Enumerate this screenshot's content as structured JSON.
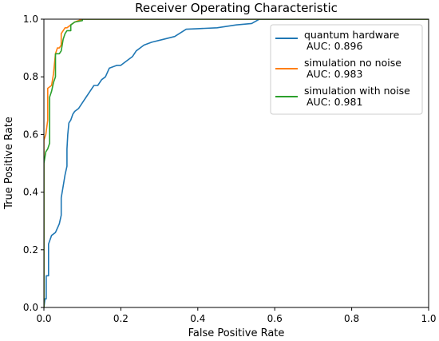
{
  "chart_data": {
    "type": "line",
    "title": "Receiver Operating Characteristic",
    "xlabel": "False Positive Rate",
    "ylabel": "True Positive Rate",
    "xlim": [
      0,
      1
    ],
    "ylim": [
      0,
      1
    ],
    "xticks": [
      "0.0",
      "0.2",
      "0.4",
      "0.6",
      "0.8",
      "1.0"
    ],
    "yticks": [
      "0.0",
      "0.2",
      "0.4",
      "0.6",
      "0.8",
      "1.0"
    ],
    "grid": false,
    "legend_position": "top-right",
    "series": [
      {
        "name": "quantum hardware",
        "auc_label": "AUC: 0.896",
        "color": "#1f77b4",
        "points": [
          [
            0,
            0
          ],
          [
            0.003,
            0.03
          ],
          [
            0.006,
            0.03
          ],
          [
            0.006,
            0.11
          ],
          [
            0.012,
            0.11
          ],
          [
            0.012,
            0.22
          ],
          [
            0.02,
            0.25
          ],
          [
            0.03,
            0.26
          ],
          [
            0.04,
            0.29
          ],
          [
            0.045,
            0.32
          ],
          [
            0.045,
            0.38
          ],
          [
            0.05,
            0.42
          ],
          [
            0.055,
            0.46
          ],
          [
            0.06,
            0.49
          ],
          [
            0.06,
            0.55
          ],
          [
            0.062,
            0.6
          ],
          [
            0.065,
            0.64
          ],
          [
            0.07,
            0.65
          ],
          [
            0.075,
            0.67
          ],
          [
            0.08,
            0.68
          ],
          [
            0.09,
            0.69
          ],
          [
            0.1,
            0.71
          ],
          [
            0.11,
            0.73
          ],
          [
            0.12,
            0.75
          ],
          [
            0.13,
            0.77
          ],
          [
            0.14,
            0.77
          ],
          [
            0.15,
            0.79
          ],
          [
            0.16,
            0.8
          ],
          [
            0.17,
            0.83
          ],
          [
            0.19,
            0.84
          ],
          [
            0.2,
            0.84
          ],
          [
            0.22,
            0.86
          ],
          [
            0.23,
            0.87
          ],
          [
            0.24,
            0.89
          ],
          [
            0.25,
            0.9
          ],
          [
            0.26,
            0.91
          ],
          [
            0.28,
            0.92
          ],
          [
            0.31,
            0.93
          ],
          [
            0.34,
            0.94
          ],
          [
            0.37,
            0.965
          ],
          [
            0.4,
            0.967
          ],
          [
            0.45,
            0.97
          ],
          [
            0.5,
            0.98
          ],
          [
            0.54,
            0.985
          ],
          [
            0.56,
            1.0
          ],
          [
            0.72,
            1.0
          ],
          [
            1.0,
            1.0
          ]
        ]
      },
      {
        "name": "simulation no noise",
        "auc_label": "AUC: 0.983",
        "color": "#ff7f0e",
        "points": [
          [
            0,
            0
          ],
          [
            0,
            0.58
          ],
          [
            0.005,
            0.6
          ],
          [
            0.01,
            0.65
          ],
          [
            0.01,
            0.76
          ],
          [
            0.02,
            0.77
          ],
          [
            0.025,
            0.81
          ],
          [
            0.03,
            0.88
          ],
          [
            0.035,
            0.9
          ],
          [
            0.04,
            0.9
          ],
          [
            0.045,
            0.91
          ],
          [
            0.045,
            0.95
          ],
          [
            0.05,
            0.96
          ],
          [
            0.055,
            0.97
          ],
          [
            0.06,
            0.97
          ],
          [
            0.07,
            0.98
          ],
          [
            0.08,
            0.99
          ],
          [
            0.09,
            0.995
          ],
          [
            0.1,
            1.0
          ],
          [
            0.15,
            1.0
          ],
          [
            1.0,
            1.0
          ]
        ]
      },
      {
        "name": "simulation with noise",
        "auc_label": "AUC: 0.981",
        "color": "#2ca02c",
        "points": [
          [
            0,
            0
          ],
          [
            0,
            0.5
          ],
          [
            0.005,
            0.54
          ],
          [
            0.01,
            0.55
          ],
          [
            0.015,
            0.57
          ],
          [
            0.015,
            0.73
          ],
          [
            0.02,
            0.75
          ],
          [
            0.025,
            0.78
          ],
          [
            0.03,
            0.8
          ],
          [
            0.03,
            0.88
          ],
          [
            0.04,
            0.88
          ],
          [
            0.045,
            0.89
          ],
          [
            0.05,
            0.93
          ],
          [
            0.055,
            0.95
          ],
          [
            0.06,
            0.96
          ],
          [
            0.07,
            0.96
          ],
          [
            0.07,
            0.98
          ],
          [
            0.08,
            0.99
          ],
          [
            0.1,
            0.995
          ],
          [
            0.1,
            1.0
          ],
          [
            0.15,
            1.0
          ],
          [
            1.0,
            1.0
          ]
        ]
      }
    ]
  }
}
